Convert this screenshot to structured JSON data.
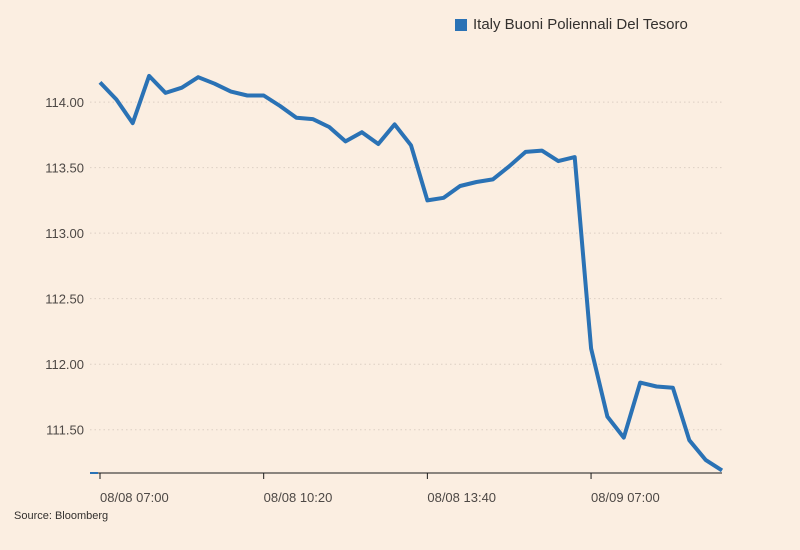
{
  "colors": {
    "background": "#fbeee1",
    "series": "#2a72b5",
    "grid": "#dccfc3",
    "axis": "#1a1a1a"
  },
  "legend": {
    "label": "Italy Buoni Poliennali Del Tesoro"
  },
  "source": "Source: Bloomberg",
  "chart_data": {
    "type": "line",
    "title": "",
    "xlabel": "",
    "ylabel": "",
    "legend_position": "top-right",
    "grid": "horizontal dotted",
    "ylim": [
      111.17,
      114.55
    ],
    "yticks": [
      111.5,
      112.0,
      112.5,
      113.0,
      113.5,
      114.0
    ],
    "ytick_labels": [
      "111.50",
      "112.00",
      "112.50",
      "113.00",
      "113.50",
      "114.00"
    ],
    "xtick_labels": [
      {
        "label": "08/08 07:00",
        "index": 0
      },
      {
        "label": "08/08 10:20",
        "index": 10
      },
      {
        "label": "08/08 13:40",
        "index": 20
      },
      {
        "label": "08/09 07:00",
        "index": 30
      }
    ],
    "series": [
      {
        "name": "Italy Buoni Poliennali Del Tesoro",
        "values": [
          114.15,
          114.02,
          113.84,
          114.2,
          114.07,
          114.11,
          114.19,
          114.14,
          114.08,
          114.05,
          114.05,
          113.97,
          113.88,
          113.87,
          113.81,
          113.7,
          113.77,
          113.68,
          113.83,
          113.67,
          113.25,
          113.27,
          113.36,
          113.39,
          113.41,
          113.51,
          113.62,
          113.63,
          113.55,
          113.58,
          112.12,
          111.6,
          111.44,
          111.86,
          111.83,
          111.82,
          111.42,
          111.27,
          111.19
        ]
      }
    ]
  }
}
